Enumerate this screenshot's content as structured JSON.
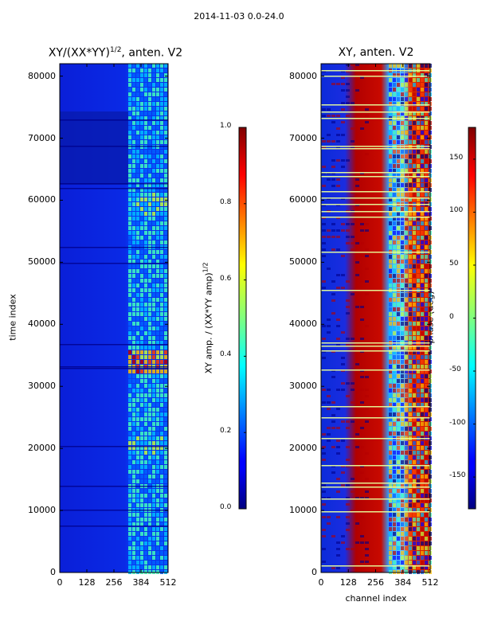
{
  "figure": {
    "suptitle": "2014-11-03 0.0-24.0"
  },
  "chart_data": [
    {
      "type": "heatmap",
      "title": "XY/(XX*YY)^{1/2}, anten. V2",
      "title_main": "XY/(XX*YY)",
      "title_sup": "1/2",
      "title_tail": ", anten. V2",
      "xlabel": "",
      "ylabel": "time index",
      "x_ticks": [
        0,
        128,
        256,
        384,
        512
      ],
      "y_ticks": [
        0,
        10000,
        20000,
        30000,
        40000,
        50000,
        60000,
        70000,
        80000
      ],
      "xlim": [
        0,
        512
      ],
      "ylim": [
        0,
        82000
      ],
      "colormap": "jet",
      "colorbar": {
        "label": "XY amp. / (XX*YY amp)^{1/2}",
        "label_main": "XY amp. / (XX*YY amp)",
        "label_sup": "1/2",
        "range": [
          0.0,
          1.0
        ],
        "ticks": [
          "0.0",
          "0.2",
          "0.4",
          "0.6",
          "0.8",
          "1.0"
        ]
      }
    },
    {
      "type": "heatmap",
      "title": "XY, anten. V2",
      "xlabel": "channel index",
      "ylabel": "",
      "x_ticks": [
        0,
        128,
        256,
        384,
        512
      ],
      "y_ticks": [
        0,
        10000,
        20000,
        30000,
        40000,
        50000,
        60000,
        70000,
        80000
      ],
      "xlim": [
        0,
        512
      ],
      "ylim": [
        0,
        82000
      ],
      "colormap": "jet",
      "colorbar": {
        "label": "phase (deg)",
        "range": [
          -180,
          180
        ],
        "ticks": [
          -150,
          -100,
          -50,
          0,
          50,
          100,
          150
        ]
      }
    }
  ]
}
